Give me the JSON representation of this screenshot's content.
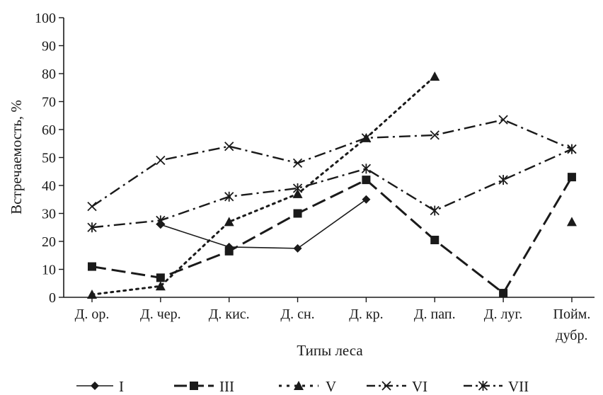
{
  "chart_data": {
    "type": "line",
    "title": "",
    "xlabel": "Типы леса",
    "ylabel": "Встречаемость, %",
    "ylim": [
      0,
      100
    ],
    "yticks": [
      0,
      10,
      20,
      30,
      40,
      50,
      60,
      70,
      80,
      90,
      100
    ],
    "grid": false,
    "legend_position": "bottom",
    "categories": [
      [
        "Д. ор."
      ],
      [
        "Д. чер."
      ],
      [
        "Д. кис."
      ],
      [
        "Д. сн."
      ],
      [
        "Д. кр."
      ],
      [
        "Д. пап."
      ],
      [
        "Д. луг."
      ],
      [
        "Пойм.",
        "дубр."
      ]
    ],
    "series": [
      {
        "name": "I",
        "marker": "diamond",
        "dash": "solid",
        "width": 1.6,
        "values": [
          null,
          26,
          18,
          17.5,
          35,
          null,
          null,
          null
        ]
      },
      {
        "name": "III",
        "marker": "square",
        "dash": "long",
        "width": 3,
        "values": [
          11,
          7,
          16.5,
          30,
          42,
          20.5,
          1.5,
          43
        ]
      },
      {
        "name": "V",
        "marker": "triangle",
        "dash": "dotted",
        "width": 3,
        "values": [
          1,
          4,
          27,
          37,
          57,
          79,
          null,
          27
        ]
      },
      {
        "name": "VI",
        "marker": "x",
        "dash": "dashdot",
        "width": 2.4,
        "values": [
          32.5,
          49,
          54,
          48,
          57,
          58,
          63.5,
          53
        ]
      },
      {
        "name": "VII",
        "marker": "asterisk",
        "dash": "dashdot",
        "width": 2.4,
        "values": [
          25,
          27.5,
          36,
          39,
          46,
          31,
          42,
          53
        ]
      }
    ]
  }
}
